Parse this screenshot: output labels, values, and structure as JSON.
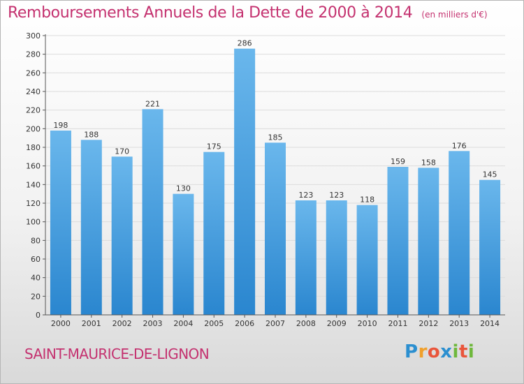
{
  "title": "Remboursements Annuels de la Dette de 2000 à 2014",
  "unit": "(en milliers d'€)",
  "commune": "SAINT-MAURICE-DE-LIGNON",
  "brand": {
    "letters": [
      "P",
      "r",
      "o",
      "x",
      "i",
      "t",
      "i"
    ],
    "colors": [
      "#2b8fd0",
      "#f0a02c",
      "#e9553b",
      "#2b8fd0",
      "#6fb83c",
      "#e9553b",
      "#6fb83c"
    ]
  },
  "colors": {
    "bar_light": "#6ab7ec",
    "bar_dark": "#2a86cf",
    "axis": "#555555",
    "grid": "#dcdcdc"
  },
  "chart_data": {
    "type": "bar",
    "categories": [
      "2000",
      "2001",
      "2002",
      "2003",
      "2004",
      "2005",
      "2006",
      "2007",
      "2008",
      "2009",
      "2010",
      "2011",
      "2012",
      "2013",
      "2014"
    ],
    "values": [
      198,
      188,
      170,
      221,
      130,
      175,
      286,
      185,
      123,
      123,
      118,
      159,
      158,
      176,
      145
    ],
    "ylim": [
      0,
      300
    ],
    "yticks": [
      0,
      20,
      40,
      60,
      80,
      100,
      120,
      140,
      160,
      180,
      200,
      220,
      240,
      260,
      280,
      300
    ],
    "grid": true,
    "title": "Remboursements Annuels de la Dette de 2000 à 2014"
  }
}
